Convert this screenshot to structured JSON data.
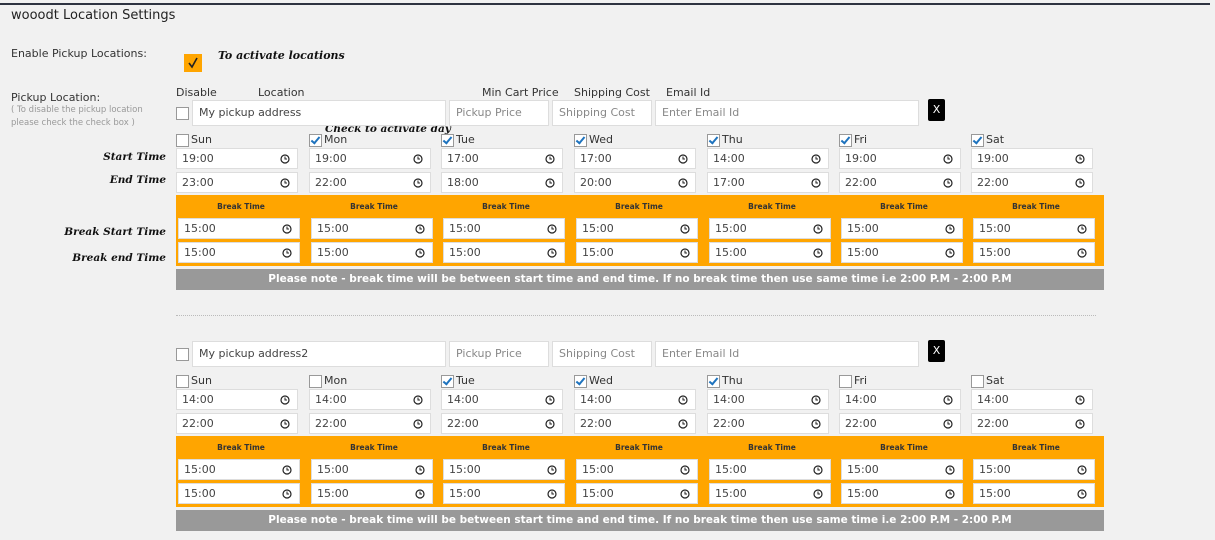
{
  "header": {
    "title": "wooodt Location Settings"
  },
  "enable": {
    "label": "Enable Pickup Locations:",
    "checked": true,
    "hint": "To activate locations"
  },
  "pickup": {
    "label": "Pickup Location:",
    "note": "( To disable the pickup location please check the check box )",
    "columns": [
      "Disable",
      "Location",
      "Min Cart Price",
      "Shipping Cost",
      "Email Id"
    ],
    "day_hint": "Check to activate day",
    "row_labels": [
      "Start Time",
      "End Time",
      "Break Start Time",
      "Break end Time"
    ]
  },
  "locations": [
    {
      "disabled": false,
      "location": "My pickup address",
      "min_cart_price": "Pickup Price",
      "shipping_cost": "Shipping Cost",
      "email": "Enter Email Id",
      "remove": "X",
      "break_label": "Break Time",
      "days": [
        {
          "name": "Sun",
          "active": false,
          "start": "19:00",
          "end": "23:00",
          "break_start": "15:00",
          "break_end": "15:00"
        },
        {
          "name": "Mon",
          "active": true,
          "start": "19:00",
          "end": "22:00",
          "break_start": "15:00",
          "break_end": "15:00"
        },
        {
          "name": "Tue",
          "active": true,
          "start": "17:00",
          "end": "18:00",
          "break_start": "15:00",
          "break_end": "15:00"
        },
        {
          "name": "Wed",
          "active": true,
          "start": "17:00",
          "end": "20:00",
          "break_start": "15:00",
          "break_end": "15:00"
        },
        {
          "name": "Thu",
          "active": true,
          "start": "14:00",
          "end": "17:00",
          "break_start": "15:00",
          "break_end": "15:00"
        },
        {
          "name": "Fri",
          "active": true,
          "start": "19:00",
          "end": "22:00",
          "break_start": "15:00",
          "break_end": "15:00"
        },
        {
          "name": "Sat",
          "active": true,
          "start": "19:00",
          "end": "22:00",
          "break_start": "15:00",
          "break_end": "15:00"
        }
      ],
      "notice": "Please note - break time will be between start time and end time. If no break time then use same time i.e 2:00 P.M - 2:00 P.M"
    },
    {
      "disabled": false,
      "location": "My pickup address2",
      "min_cart_price": "Pickup Price",
      "shipping_cost": "Shipping Cost",
      "email": "Enter Email Id",
      "remove": "X",
      "break_label": "Break Time",
      "days": [
        {
          "name": "Sun",
          "active": false,
          "start": "14:00",
          "end": "22:00",
          "break_start": "15:00",
          "break_end": "15:00"
        },
        {
          "name": "Mon",
          "active": false,
          "start": "14:00",
          "end": "22:00",
          "break_start": "15:00",
          "break_end": "15:00"
        },
        {
          "name": "Tue",
          "active": true,
          "start": "14:00",
          "end": "22:00",
          "break_start": "15:00",
          "break_end": "15:00"
        },
        {
          "name": "Wed",
          "active": true,
          "start": "14:00",
          "end": "22:00",
          "break_start": "15:00",
          "break_end": "15:00"
        },
        {
          "name": "Thu",
          "active": true,
          "start": "14:00",
          "end": "22:00",
          "break_start": "15:00",
          "break_end": "15:00"
        },
        {
          "name": "Fri",
          "active": false,
          "start": "14:00",
          "end": "22:00",
          "break_start": "15:00",
          "break_end": "15:00"
        },
        {
          "name": "Sat",
          "active": false,
          "start": "14:00",
          "end": "22:00",
          "break_start": "15:00",
          "break_end": "15:00"
        }
      ],
      "notice": "Please note - break time will be between start time and end time. If no break time then use same time i.e 2:00 P.M - 2:00 P.M"
    }
  ]
}
